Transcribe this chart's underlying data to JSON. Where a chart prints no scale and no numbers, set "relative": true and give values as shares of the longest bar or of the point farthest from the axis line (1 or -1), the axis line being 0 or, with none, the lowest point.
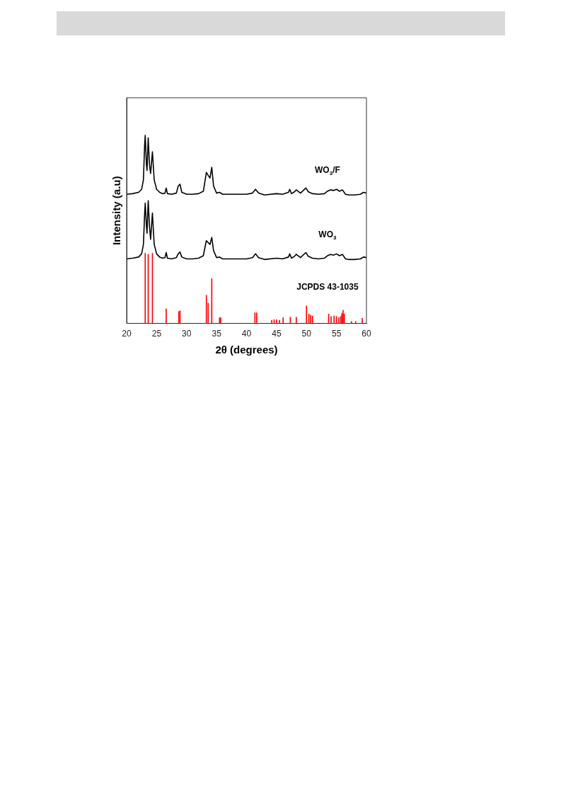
{
  "chart_data": {
    "type": "line",
    "xlabel": "2θ (degrees)",
    "ylabel": "Intensity (a.u)",
    "relative": true,
    "xlim": [
      20,
      60
    ],
    "xticks": [
      20,
      25,
      30,
      35,
      40,
      45,
      50,
      55,
      60
    ],
    "grid": false,
    "legend": false,
    "marker": "none",
    "line_style": "solid",
    "series": [
      {
        "name": "WO$_{3}$/F",
        "color": "#000000",
        "x": [
          20,
          21,
          22,
          22.5,
          22.8,
          23.0,
          23.1,
          23.3,
          23.4,
          23.6,
          23.8,
          24.0,
          24.3,
          24.6,
          25,
          25.5,
          26,
          26.4,
          26.6,
          26.8,
          27.5,
          28.3,
          28.6,
          28.9,
          29.2,
          30,
          31,
          32,
          32.8,
          33.1,
          33.3,
          33.6,
          33.9,
          34.2,
          34.5,
          35,
          35.5,
          36,
          38,
          40,
          41,
          41.5,
          42,
          43,
          45,
          46,
          47,
          47.2,
          47.5,
          48,
          48.3,
          49,
          49.9,
          50.3,
          51,
          52,
          53,
          53.5,
          54,
          54.5,
          55,
          55.5,
          56,
          56.5,
          57,
          58,
          59,
          59.5,
          60
        ],
        "values": [
          0.687,
          0.69,
          0.697,
          0.713,
          0.763,
          0.947,
          1,
          0.847,
          0.813,
          0.987,
          0.847,
          0.797,
          0.913,
          0.763,
          0.713,
          0.697,
          0.69,
          0.693,
          0.72,
          0.69,
          0.687,
          0.693,
          0.73,
          0.74,
          0.697,
          0.687,
          0.687,
          0.69,
          0.703,
          0.763,
          0.803,
          0.787,
          0.773,
          0.83,
          0.73,
          0.693,
          0.697,
          0.687,
          0.687,
          0.687,
          0.693,
          0.713,
          0.693,
          0.683,
          0.69,
          0.687,
          0.697,
          0.713,
          0.69,
          0.7,
          0.71,
          0.693,
          0.72,
          0.7,
          0.69,
          0.687,
          0.69,
          0.703,
          0.71,
          0.707,
          0.713,
          0.703,
          0.71,
          0.687,
          0.683,
          0.683,
          0.687,
          0.697,
          0.693
        ]
      },
      {
        "name": "WO$_{3}$",
        "color": "#000000",
        "x": [
          20,
          21,
          22,
          22.5,
          22.8,
          23.0,
          23.1,
          23.3,
          23.4,
          23.6,
          23.8,
          24.0,
          24.3,
          24.6,
          25,
          25.5,
          26,
          26.4,
          26.6,
          26.8,
          27.5,
          28.3,
          28.6,
          28.9,
          29.2,
          30,
          31,
          32,
          32.8,
          33.1,
          33.3,
          33.6,
          33.9,
          34.2,
          34.5,
          35,
          35.5,
          36,
          38,
          40,
          41,
          41.5,
          42,
          43,
          45,
          46,
          47,
          47.2,
          47.5,
          48,
          48.3,
          49,
          49.9,
          50.3,
          51,
          52,
          53,
          53.5,
          54,
          54.5,
          55,
          55.5,
          56,
          56.5,
          57,
          58,
          59,
          59.5,
          60
        ],
        "values": [
          0.343,
          0.347,
          0.353,
          0.37,
          0.42,
          0.58,
          0.64,
          0.52,
          0.48,
          0.653,
          0.52,
          0.447,
          0.587,
          0.42,
          0.37,
          0.353,
          0.347,
          0.35,
          0.377,
          0.347,
          0.343,
          0.35,
          0.37,
          0.38,
          0.353,
          0.343,
          0.343,
          0.347,
          0.36,
          0.41,
          0.44,
          0.43,
          0.42,
          0.457,
          0.387,
          0.35,
          0.353,
          0.343,
          0.343,
          0.343,
          0.35,
          0.37,
          0.35,
          0.34,
          0.347,
          0.343,
          0.353,
          0.37,
          0.347,
          0.357,
          0.367,
          0.35,
          0.377,
          0.357,
          0.347,
          0.343,
          0.347,
          0.36,
          0.367,
          0.363,
          0.37,
          0.36,
          0.367,
          0.343,
          0.34,
          0.34,
          0.343,
          0.353,
          0.35
        ]
      },
      {
        "name": "JCPDS 43-1035",
        "type": "bar",
        "color": "#ff0000",
        "x": [
          23.1,
          23.6,
          24.3,
          26.6,
          28.7,
          28.9,
          33.3,
          33.6,
          34.2,
          35.5,
          35.7,
          41.4,
          41.7,
          44.2,
          44.6,
          45,
          45.5,
          46.1,
          47.3,
          48.3,
          50,
          50.4,
          50.7,
          51,
          53.7,
          54.1,
          54.6,
          55,
          55.4,
          55.7,
          55.9,
          56.1,
          56.3,
          57.5,
          58.2,
          59.3
        ],
        "values": [
          0.373,
          0.367,
          0.373,
          0.077,
          0.063,
          0.067,
          0.15,
          0.107,
          0.237,
          0.03,
          0.03,
          0.057,
          0.057,
          0.017,
          0.02,
          0.02,
          0.017,
          0.03,
          0.033,
          0.033,
          0.093,
          0.05,
          0.043,
          0.04,
          0.05,
          0.037,
          0.04,
          0.037,
          0.03,
          0.037,
          0.053,
          0.07,
          0.05,
          0.01,
          0.01,
          0.027
        ]
      }
    ]
  }
}
